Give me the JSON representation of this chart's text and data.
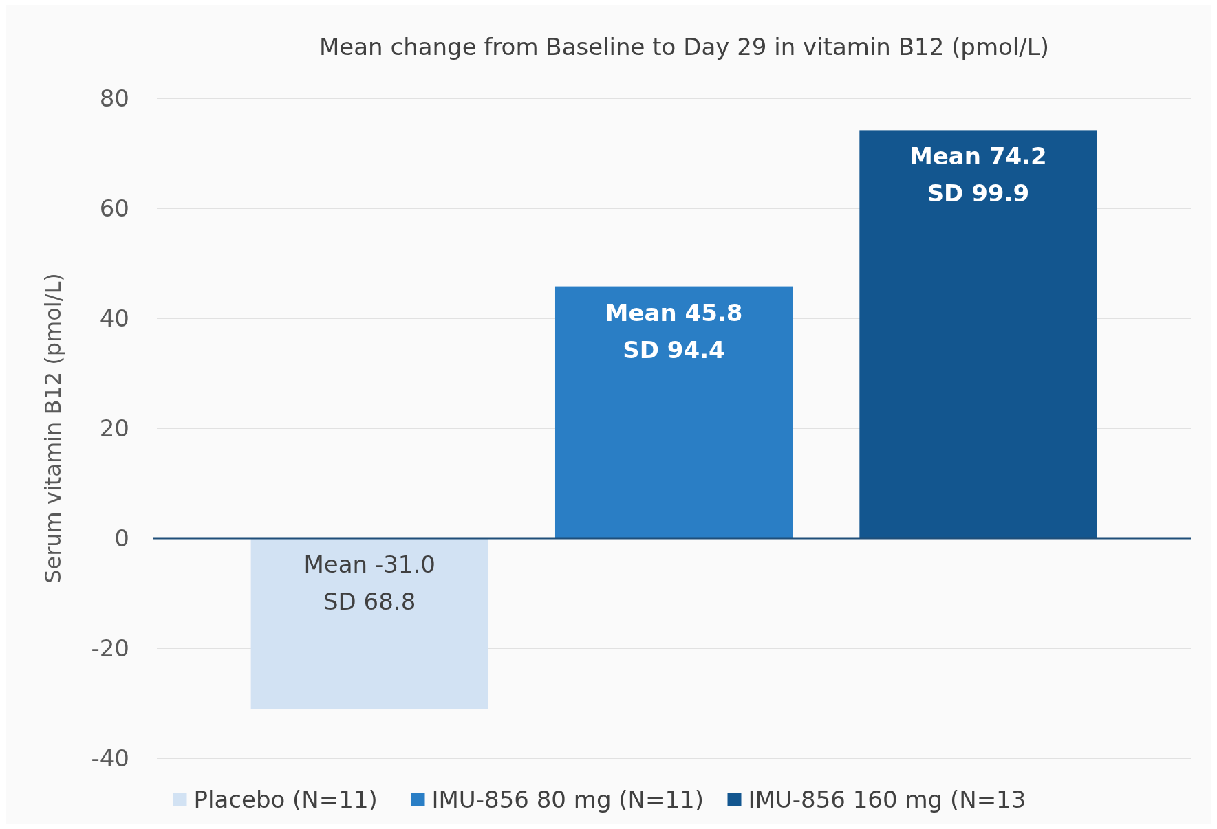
{
  "chart_data": {
    "type": "bar",
    "title": "Mean change from Baseline to Day 29 in vitamin B12 (pmol/L)",
    "ylabel": "Serum vitamin B12 (pmol/L)",
    "categories": [
      null
    ],
    "series": [
      {
        "name": "Placebo (N=11)",
        "color": "#d2e2f3",
        "values": [
          -31.0
        ],
        "value_labels": [
          "Mean -31.0\nSD 68.8"
        ]
      },
      {
        "name": "IMU-856 80 mg (N=11)",
        "color": "#2a7ec5",
        "values": [
          45.8
        ],
        "value_labels": [
          "Mean 45.8\nSD 94.4"
        ]
      },
      {
        "name": "IMU-856 160 mg (N=13",
        "color": "#13568f",
        "values": [
          74.2
        ],
        "value_labels": [
          "Mean 74.2\nSD 99.9"
        ]
      }
    ],
    "ylim": [
      -40,
      80
    ],
    "yticks": [
      -40,
      -20,
      0,
      20,
      40,
      60,
      80
    ],
    "grid": "y",
    "legend": "bottom",
    "ref_lines": [
      {
        "axis": "y",
        "value": 0,
        "color": "#1f4e79"
      }
    ]
  }
}
